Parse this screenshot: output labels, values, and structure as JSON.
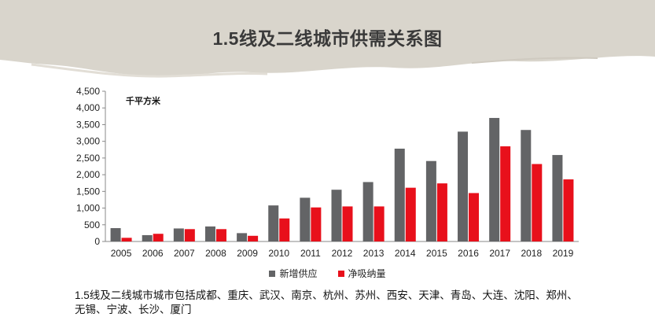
{
  "title": "1.5线及二线城市供需关系图",
  "unit_label": "千平方米",
  "note": "1.5线及二线城市城市包括成都、重庆、武汉、南京、杭州、苏州、西安、天津、青岛、大连、沈阳、郑州、无锡、宁波、长沙、厦门",
  "colors": {
    "supply": "#636466",
    "absorption": "#e8101b",
    "brush": "#d9d5cc"
  },
  "chart_data": {
    "type": "bar",
    "categories": [
      "2005",
      "2006",
      "2007",
      "2008",
      "2009",
      "2010",
      "2011",
      "2012",
      "2013",
      "2014",
      "2015",
      "2016",
      "2017",
      "2018",
      "2019"
    ],
    "series": [
      {
        "name": "新增供应",
        "values": [
          400,
          190,
          390,
          450,
          250,
          1080,
          1310,
          1550,
          1780,
          2780,
          2410,
          3290,
          3700,
          3340,
          2590
        ]
      },
      {
        "name": "净吸纳量",
        "values": [
          110,
          230,
          370,
          370,
          170,
          690,
          1020,
          1050,
          1050,
          1610,
          1740,
          1450,
          2850,
          2320,
          1860
        ]
      }
    ],
    "ylim": [
      0,
      4500
    ],
    "yticks": [
      "0",
      "500",
      "1,000",
      "1,500",
      "2,000",
      "2,500",
      "3,000",
      "3,500",
      "4,000",
      "4,500"
    ],
    "xlabel": "",
    "ylabel": "千平方米",
    "grid": false,
    "legend": "bottom"
  }
}
